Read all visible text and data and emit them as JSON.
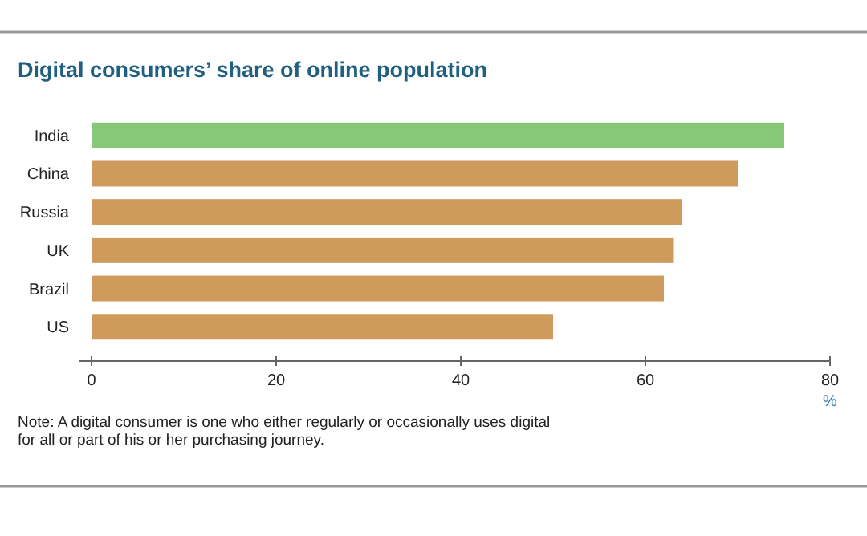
{
  "chart_data": {
    "type": "bar",
    "orientation": "horizontal",
    "title": "Digital consumers’ share of online population",
    "categories": [
      "India",
      "China",
      "Russia",
      "UK",
      "Brazil",
      "US"
    ],
    "values": [
      75,
      70,
      64,
      63,
      62,
      50
    ],
    "colors": [
      "#86c878",
      "#cf9b5c",
      "#cf9b5c",
      "#cf9b5c",
      "#cf9b5c",
      "#cf9b5c"
    ],
    "xlim": [
      0,
      80
    ],
    "xticks": [
      0,
      20,
      40,
      60,
      80
    ],
    "xlabel": "%",
    "grid": false,
    "annotations": [
      "Note: A digital consumer is one who either regularly or occasionally uses digital for all or part of his or her purchasing journey."
    ]
  }
}
